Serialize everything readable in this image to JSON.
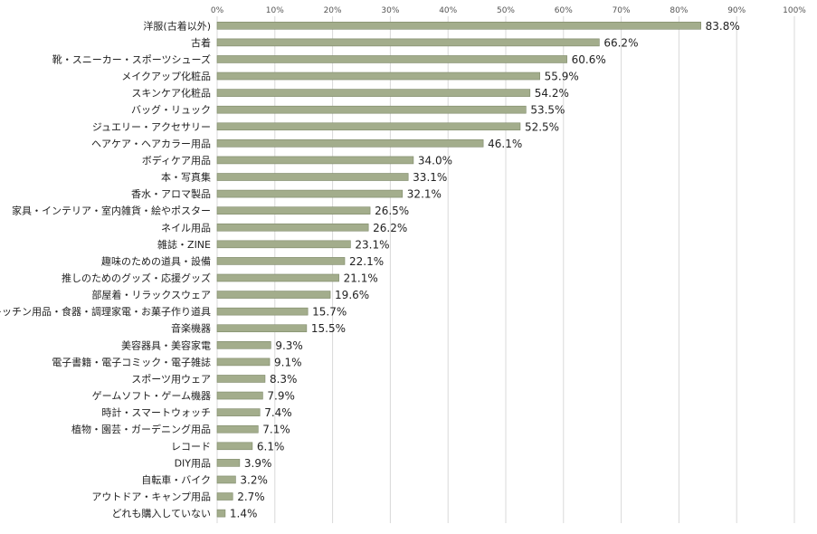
{
  "chart_data": {
    "type": "bar",
    "orientation": "horizontal",
    "categories": [
      "洋服(古着以外)",
      "古着",
      "靴・スニーカー・スポーツシューズ",
      "メイクアップ化粧品",
      "スキンケア化粧品",
      "バッグ・リュック",
      "ジュエリー・アクセサリー",
      "ヘアケア・ヘアカラー用品",
      "ボディケア用品",
      "本・写真集",
      "香水・アロマ製品",
      "家具・インテリア・室内雑貨・絵やポスター",
      "ネイル用品",
      "雑誌・ZINE",
      "趣味のための道具・設備",
      "推しのためのグッズ・応援グッズ",
      "部屋着・リラックスウェア",
      "キッチン用品・食器・調理家電・お菓子作り道具",
      "音楽機器",
      "美容器具・美容家電",
      "電子書籍・電子コミック・電子雑誌",
      "スポーツ用ウェア",
      "ゲームソフト・ゲーム機器",
      "時計・スマートウォッチ",
      "植物・園芸・ガーデニング用品",
      "レコード",
      "DIY用品",
      "自転車・バイク",
      "アウトドア・キャンプ用品",
      "どれも購入していない"
    ],
    "values": [
      83.8,
      66.2,
      60.6,
      55.9,
      54.2,
      53.5,
      52.5,
      46.1,
      34.0,
      33.1,
      32.1,
      26.5,
      26.2,
      23.1,
      22.1,
      21.1,
      19.6,
      15.7,
      15.5,
      9.3,
      9.1,
      8.3,
      7.9,
      7.4,
      7.1,
      6.1,
      3.9,
      3.2,
      2.7,
      1.4
    ],
    "value_labels": [
      "83.8%",
      "66.2%",
      "60.6%",
      "55.9%",
      "54.2%",
      "53.5%",
      "52.5%",
      "46.1%",
      "34.0%",
      "33.1%",
      "32.1%",
      "26.5%",
      "26.2%",
      "23.1%",
      "22.1%",
      "21.1%",
      "19.6%",
      "15.7%",
      "15.5%",
      "9.3%",
      "9.1%",
      "8.3%",
      "7.9%",
      "7.4%",
      "7.1%",
      "6.1%",
      "3.9%",
      "3.2%",
      "2.7%",
      "1.4%"
    ],
    "xlim": [
      0,
      100
    ],
    "xticks": [
      0,
      10,
      20,
      30,
      40,
      50,
      60,
      70,
      80,
      90,
      100
    ],
    "xtick_labels": [
      "0%",
      "10%",
      "20%",
      "30%",
      "40%",
      "50%",
      "60%",
      "70%",
      "80%",
      "90%",
      "100%"
    ],
    "axis_position": "top",
    "grid": true,
    "title": "",
    "xlabel": "",
    "ylabel": "",
    "colors": {
      "bar_fill": "#a3ad8c",
      "bar_stroke": "#7d8868",
      "grid": "#d9d9d9"
    }
  }
}
